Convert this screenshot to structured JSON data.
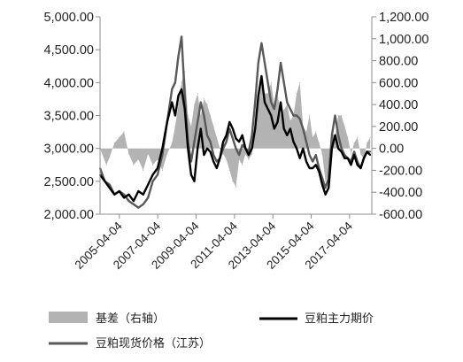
{
  "chart_data": {
    "type": "line",
    "y_left": {
      "min": 2000,
      "max": 5000,
      "step": 500,
      "tick_labels": [
        "5,000.00",
        "4,500.00",
        "4,000.00",
        "3,500.00",
        "3,000.00",
        "2,500.00",
        "2,000.00"
      ]
    },
    "y_right": {
      "min": -600,
      "max": 1200,
      "step": 200,
      "tick_labels": [
        "1,200.00",
        "1,000.00",
        "800.00",
        "600.00",
        "400.00",
        "200.00",
        "0.00",
        "-200.00",
        "-400.00",
        "-600.00"
      ]
    },
    "x_range": [
      "2004-04-01",
      "2018-06-01"
    ],
    "x_tick_labels": [
      "2005-04-04",
      "2007-04-04",
      "2009-04-04",
      "2011-04-04",
      "2013-04-04",
      "2015-04-04",
      "2017-04-04"
    ],
    "x_tick_values": [
      "2005-04-04",
      "2007-04-04",
      "2009-04-04",
      "2011-04-04",
      "2013-04-04",
      "2015-04-04",
      "2017-04-04"
    ],
    "grid": false,
    "legend_position": "bottom",
    "legend": [
      "基差（右轴）",
      "豆粕主力期价",
      "豆粕现货价格（江苏）"
    ],
    "colors": {
      "basis": "#b3b3b3",
      "futures": "#000000",
      "spot": "#595959",
      "axis": "#8c8c8c",
      "text": "#222222"
    },
    "series": [
      {
        "name": "基差（右轴）",
        "axis": "right",
        "style": "area",
        "x": [
          "2004-04",
          "2004-08",
          "2004-10",
          "2005-01",
          "2005-04",
          "2005-07",
          "2005-10",
          "2006-01",
          "2006-04",
          "2006-07",
          "2006-10",
          "2007-01",
          "2007-04",
          "2007-07",
          "2007-10",
          "2008-01",
          "2008-03",
          "2008-05",
          "2008-07",
          "2008-09",
          "2008-11",
          "2009-01",
          "2009-03",
          "2009-05",
          "2009-07",
          "2009-09",
          "2009-11",
          "2010-01",
          "2010-03",
          "2010-05",
          "2010-07",
          "2010-09",
          "2010-11",
          "2011-01",
          "2011-03",
          "2011-05",
          "2011-07",
          "2011-09",
          "2011-11",
          "2012-01",
          "2012-03",
          "2012-05",
          "2012-07",
          "2012-09",
          "2012-11",
          "2013-01",
          "2013-03",
          "2013-05",
          "2013-07",
          "2013-09",
          "2013-11",
          "2014-01",
          "2014-03",
          "2014-05",
          "2014-07",
          "2014-09",
          "2014-11",
          "2015-01",
          "2015-03",
          "2015-05",
          "2015-07",
          "2015-09",
          "2015-11",
          "2016-01",
          "2016-03",
          "2016-05",
          "2016-07",
          "2016-09",
          "2016-11",
          "2017-01",
          "2017-03",
          "2017-05",
          "2017-07",
          "2017-09",
          "2017-11",
          "2018-01",
          "2018-03",
          "2018-05"
        ],
        "values": [
          0,
          -150,
          -80,
          50,
          100,
          150,
          -50,
          -150,
          -100,
          -200,
          -50,
          -150,
          -100,
          -200,
          -50,
          50,
          200,
          400,
          600,
          700,
          300,
          200,
          400,
          500,
          300,
          450,
          400,
          300,
          200,
          100,
          0,
          -50,
          -100,
          -200,
          -300,
          -350,
          -100,
          -150,
          -50,
          -100,
          -50,
          200,
          400,
          600,
          500,
          500,
          600,
          400,
          500,
          300,
          350,
          400,
          250,
          300,
          500,
          600,
          200,
          150,
          300,
          100,
          150,
          50,
          -50,
          -300,
          -250,
          150,
          100,
          300,
          300,
          200,
          100,
          -50,
          50,
          100,
          -50,
          -100,
          50,
          100
        ]
      },
      {
        "name": "豆粕主力期价",
        "axis": "left",
        "style": "line",
        "x": [
          "2004-04",
          "2004-07",
          "2004-10",
          "2005-01",
          "2005-04",
          "2005-07",
          "2005-10",
          "2006-01",
          "2006-04",
          "2006-07",
          "2006-10",
          "2007-01",
          "2007-04",
          "2007-07",
          "2007-10",
          "2008-01",
          "2008-03",
          "2008-05",
          "2008-07",
          "2008-09",
          "2008-11",
          "2009-01",
          "2009-03",
          "2009-05",
          "2009-07",
          "2009-09",
          "2009-11",
          "2010-01",
          "2010-03",
          "2010-05",
          "2010-07",
          "2010-09",
          "2010-11",
          "2011-01",
          "2011-03",
          "2011-05",
          "2011-07",
          "2011-09",
          "2011-11",
          "2012-01",
          "2012-03",
          "2012-05",
          "2012-07",
          "2012-09",
          "2012-11",
          "2013-01",
          "2013-03",
          "2013-05",
          "2013-07",
          "2013-09",
          "2013-11",
          "2014-01",
          "2014-03",
          "2014-05",
          "2014-07",
          "2014-09",
          "2014-11",
          "2015-01",
          "2015-03",
          "2015-05",
          "2015-07",
          "2015-09",
          "2015-11",
          "2016-01",
          "2016-03",
          "2016-05",
          "2016-07",
          "2016-09",
          "2016-11",
          "2017-01",
          "2017-03",
          "2017-05",
          "2017-07",
          "2017-09",
          "2017-11",
          "2018-01",
          "2018-03",
          "2018-05"
        ],
        "values": [
          2600,
          2500,
          2400,
          2300,
          2350,
          2250,
          2300,
          2200,
          2350,
          2300,
          2450,
          2600,
          2700,
          3000,
          3400,
          3700,
          3500,
          3800,
          3900,
          3600,
          3000,
          2600,
          2500,
          3000,
          3300,
          2900,
          3000,
          2950,
          2800,
          2700,
          2850,
          3100,
          3200,
          3400,
          3300,
          3150,
          3100,
          3200,
          3000,
          2900,
          3000,
          3300,
          3800,
          4100,
          3700,
          3600,
          3500,
          3300,
          3400,
          3700,
          3300,
          3200,
          3300,
          3100,
          3000,
          2850,
          3000,
          2800,
          2700,
          2700,
          2750,
          2650,
          2450,
          2300,
          2400,
          3000,
          3200,
          3000,
          2950,
          2850,
          2850,
          2750,
          2900,
          2750,
          2700,
          2850,
          2950,
          2900
        ]
      },
      {
        "name": "豆粕现货价格（江苏）",
        "axis": "left",
        "style": "line",
        "x": [
          "2004-04",
          "2004-07",
          "2004-10",
          "2005-01",
          "2005-04",
          "2005-07",
          "2005-10",
          "2006-01",
          "2006-04",
          "2006-07",
          "2006-10",
          "2007-01",
          "2007-04",
          "2007-07",
          "2007-10",
          "2008-01",
          "2008-03",
          "2008-05",
          "2008-07",
          "2008-09",
          "2008-11",
          "2009-01",
          "2009-03",
          "2009-05",
          "2009-07",
          "2009-09",
          "2009-11",
          "2010-01",
          "2010-03",
          "2010-05",
          "2010-07",
          "2010-09",
          "2010-11",
          "2011-01",
          "2011-03",
          "2011-05",
          "2011-07",
          "2011-09",
          "2011-11",
          "2012-01",
          "2012-03",
          "2012-05",
          "2012-07",
          "2012-09",
          "2012-11",
          "2013-01",
          "2013-03",
          "2013-05",
          "2013-07",
          "2013-09",
          "2013-11",
          "2014-01",
          "2014-03",
          "2014-05",
          "2014-07",
          "2014-09",
          "2014-11",
          "2015-01",
          "2015-03",
          "2015-05",
          "2015-07",
          "2015-09",
          "2015-11",
          "2016-01",
          "2016-03",
          "2016-05",
          "2016-07",
          "2016-09",
          "2016-11",
          "2017-01",
          "2017-03",
          "2017-05",
          "2017-07",
          "2017-09",
          "2017-11",
          "2018-01",
          "2018-03",
          "2018-05"
        ],
        "values": [
          2700,
          2500,
          2450,
          2300,
          2350,
          2300,
          2200,
          2150,
          2100,
          2150,
          2250,
          2500,
          2600,
          2900,
          3400,
          3900,
          4000,
          4400,
          4700,
          3800,
          3100,
          2800,
          3100,
          3400,
          3700,
          3500,
          3200,
          3100,
          2900,
          2800,
          2850,
          3000,
          3100,
          3300,
          3150,
          3000,
          2900,
          3050,
          3000,
          2950,
          3200,
          3700,
          4300,
          4600,
          4300,
          4000,
          3700,
          3600,
          3900,
          4300,
          4000,
          3700,
          3600,
          3500,
          3500,
          3450,
          3300,
          3100,
          2900,
          2800,
          2900,
          2700,
          2550,
          2400,
          2550,
          3200,
          3500,
          3200,
          3000,
          2900,
          2850,
          2800,
          2950,
          2800,
          2700,
          2850,
          2950,
          2950
        ]
      }
    ]
  }
}
